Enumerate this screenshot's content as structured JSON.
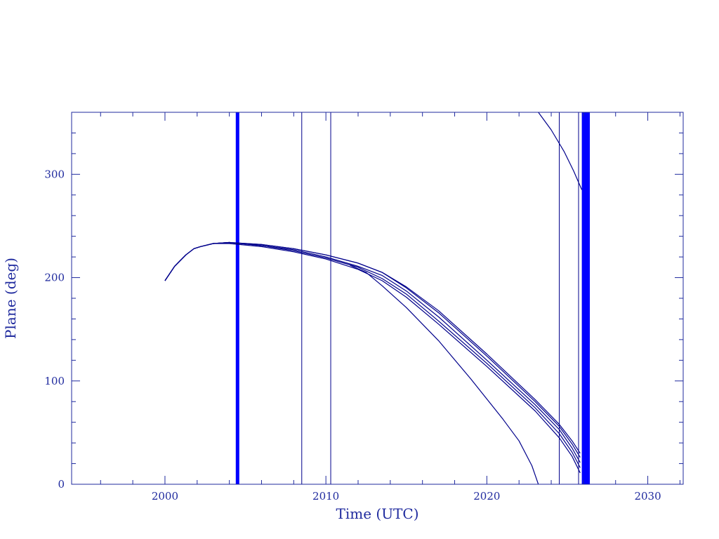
{
  "chart_data": {
    "type": "line",
    "title": "",
    "xlabel": "Time (UTC)",
    "ylabel": "Plane (deg)",
    "xlim": [
      1994.2,
      2032.2
    ],
    "ylim": [
      0,
      360
    ],
    "x_ticks": [
      {
        "value": 2000,
        "label": "2000"
      },
      {
        "value": 2010,
        "label": "2010"
      },
      {
        "value": 2020,
        "label": "2020"
      },
      {
        "value": 2030,
        "label": "2030"
      }
    ],
    "y_ticks": [
      {
        "value": 0,
        "label": "0"
      },
      {
        "value": 100,
        "label": "100"
      },
      {
        "value": 200,
        "label": "200"
      },
      {
        "value": 300,
        "label": "300"
      }
    ],
    "x_minor_step": 2,
    "y_minor_step": 20,
    "grid": false,
    "colors": {
      "line": "#00008b",
      "axis": "#1f2a9e",
      "event": "#0000ff"
    },
    "vertical_lines": [
      {
        "x_start": 2004.4,
        "x_end": 2004.6,
        "thick": true
      },
      {
        "x_start": 2008.5,
        "x_end": 2008.5,
        "thick": false
      },
      {
        "x_start": 2010.3,
        "x_end": 2010.3,
        "thick": false
      },
      {
        "x_start": 2024.5,
        "x_end": 2024.5,
        "thick": false
      },
      {
        "x_start": 2025.7,
        "x_end": 2025.7,
        "thick": false
      },
      {
        "x_start": 2025.9,
        "x_end": 2026.4,
        "thick": true
      }
    ],
    "series": [
      {
        "x": [
          2000.0,
          2000.6,
          2001.3,
          2001.8,
          2002.2,
          2003.0,
          2004.0,
          2006.0,
          2008.0,
          2010.0,
          2012.0,
          2013.5,
          2015.0,
          2017.0,
          2020.0,
          2023.0,
          2024.5,
          2025.3,
          2025.8
        ],
        "y": [
          197,
          211,
          222,
          228,
          230,
          233,
          234,
          232,
          228,
          222,
          214,
          205,
          191,
          168,
          126,
          82,
          58,
          42,
          30
        ]
      },
      {
        "x": [
          2000.0,
          2000.6,
          2001.3,
          2001.8,
          2002.2,
          2003.0,
          2004.0,
          2006.0,
          2008.0,
          2010.0,
          2012.0,
          2013.5,
          2015.0,
          2017.0,
          2020.0,
          2023.0,
          2024.5,
          2025.3,
          2025.8
        ],
        "y": [
          197,
          211,
          222,
          228,
          230,
          233,
          234,
          232,
          228,
          222,
          214,
          205,
          190,
          166,
          124,
          80,
          56,
          39,
          26
        ]
      },
      {
        "x": [
          2000.0,
          2000.6,
          2001.3,
          2001.8,
          2002.2,
          2003.0,
          2004.0,
          2006.0,
          2008.0,
          2010.0,
          2012.0,
          2013.5,
          2015.0,
          2017.0,
          2020.0,
          2023.0,
          2024.5,
          2025.3,
          2025.8
        ],
        "y": [
          197,
          211,
          222,
          228,
          230,
          233,
          234,
          231,
          227,
          220,
          211,
          202,
          187,
          162,
          120,
          77,
          53,
          35,
          21
        ]
      },
      {
        "x": [
          2000.0,
          2000.6,
          2001.3,
          2001.8,
          2002.2,
          2003.0,
          2004.0,
          2006.0,
          2008.0,
          2010.0,
          2012.0,
          2013.5,
          2015.0,
          2017.0,
          2020.0,
          2023.0,
          2024.5,
          2025.3,
          2025.8
        ],
        "y": [
          197,
          211,
          222,
          228,
          230,
          233,
          234,
          231,
          226,
          219,
          210,
          199,
          184,
          158,
          117,
          74,
          49,
          31,
          16
        ]
      },
      {
        "x": [
          2000.0,
          2000.6,
          2001.3,
          2001.8,
          2002.2,
          2003.0,
          2004.0,
          2006.0,
          2008.0,
          2010.0,
          2012.0,
          2013.5,
          2015.0,
          2017.0,
          2020.0,
          2023.0,
          2024.5,
          2025.3,
          2025.8
        ],
        "y": [
          197,
          211,
          222,
          228,
          230,
          233,
          233,
          230,
          225,
          218,
          208,
          197,
          181,
          155,
          114,
          71,
          45,
          27,
          11
        ]
      },
      {
        "x": [
          2011.5,
          2012.5,
          2013.5,
          2015.0,
          2017.0,
          2019.0,
          2021.0,
          2022.0,
          2022.8,
          2023.2
        ],
        "y": [
          212,
          205,
          192,
          171,
          139,
          102,
          63,
          42,
          18,
          0
        ]
      },
      {
        "x": [
          2023.2,
          2024.0,
          2024.8,
          2025.4,
          2025.9
        ],
        "y": [
          360,
          343,
          322,
          303,
          285
        ]
      }
    ]
  }
}
